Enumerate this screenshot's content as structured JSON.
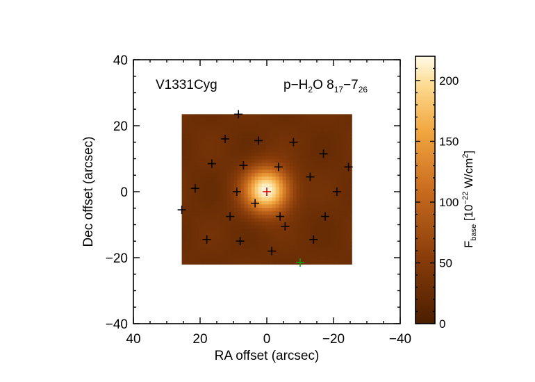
{
  "chart_data": {
    "type": "heatmap",
    "object_label": "V1331Cyg",
    "line_label": {
      "prefix": "p−H",
      "sub1": "2",
      "mid": "O 8",
      "sub2": "17",
      "dash": "−7",
      "sub3": "26"
    },
    "xlabel": "RA offset (arcsec)",
    "ylabel": "Dec offset (arcsec)",
    "xlim": [
      40,
      -40
    ],
    "ylim": [
      -40,
      40
    ],
    "x_ticks": [
      "40",
      "20",
      "0",
      "−20",
      "−40"
    ],
    "x_tick_values": [
      40,
      20,
      0,
      -20,
      -40
    ],
    "y_ticks": [
      "−40",
      "−20",
      "0",
      "20",
      "40"
    ],
    "y_tick_values": [
      -40,
      -20,
      0,
      20,
      40
    ],
    "map_extent": {
      "ra": [
        25.5,
        -25.5
      ],
      "dec": [
        -22,
        23.5
      ]
    },
    "peak_value": 220,
    "peak_position": [
      0,
      0
    ],
    "background_value": 30,
    "source_fwhm_arcsec": 11,
    "colorbar": {
      "label_main": "F",
      "label_sub": "base",
      "label_rest": " [10",
      "label_exp": "−22",
      "label_unit": " W/cm",
      "label_sq": "2",
      "label_close": "]",
      "ticks": [
        "0",
        "50",
        "100",
        "150",
        "200"
      ],
      "tick_values": [
        0,
        50,
        100,
        150,
        200
      ],
      "range": [
        0,
        220
      ],
      "colormap": "heat (dark brown → orange → white)"
    },
    "spaxels": [
      [
        0,
        0
      ],
      [
        -3.5,
        7.5
      ],
      [
        3.5,
        -3.5
      ],
      [
        -8,
        15
      ],
      [
        -4,
        -7.5
      ],
      [
        9,
        0
      ],
      [
        -13,
        4.5
      ],
      [
        -5.5,
        -10.5
      ],
      [
        2.5,
        15.5
      ],
      [
        7,
        8
      ],
      [
        11,
        -7.5
      ],
      [
        -17,
        11.5
      ],
      [
        -14,
        -14.5
      ],
      [
        16.5,
        8.5
      ],
      [
        12.5,
        16
      ],
      [
        -1.5,
        -18
      ],
      [
        8,
        -15
      ],
      [
        18,
        -14.5
      ],
      [
        -21,
        0
      ],
      [
        -24.5,
        7.5
      ],
      [
        -17.5,
        -7.5
      ],
      [
        21.5,
        1
      ],
      [
        25.5,
        -5.5
      ],
      [
        8.5,
        23.5
      ]
    ],
    "central_spaxel": [
      0,
      0
    ],
    "reference_marker": [
      -10,
      -21.5
    ],
    "colors": {
      "spaxel": "#000000",
      "central": "#dd0000",
      "reference": "#00aa00"
    }
  }
}
